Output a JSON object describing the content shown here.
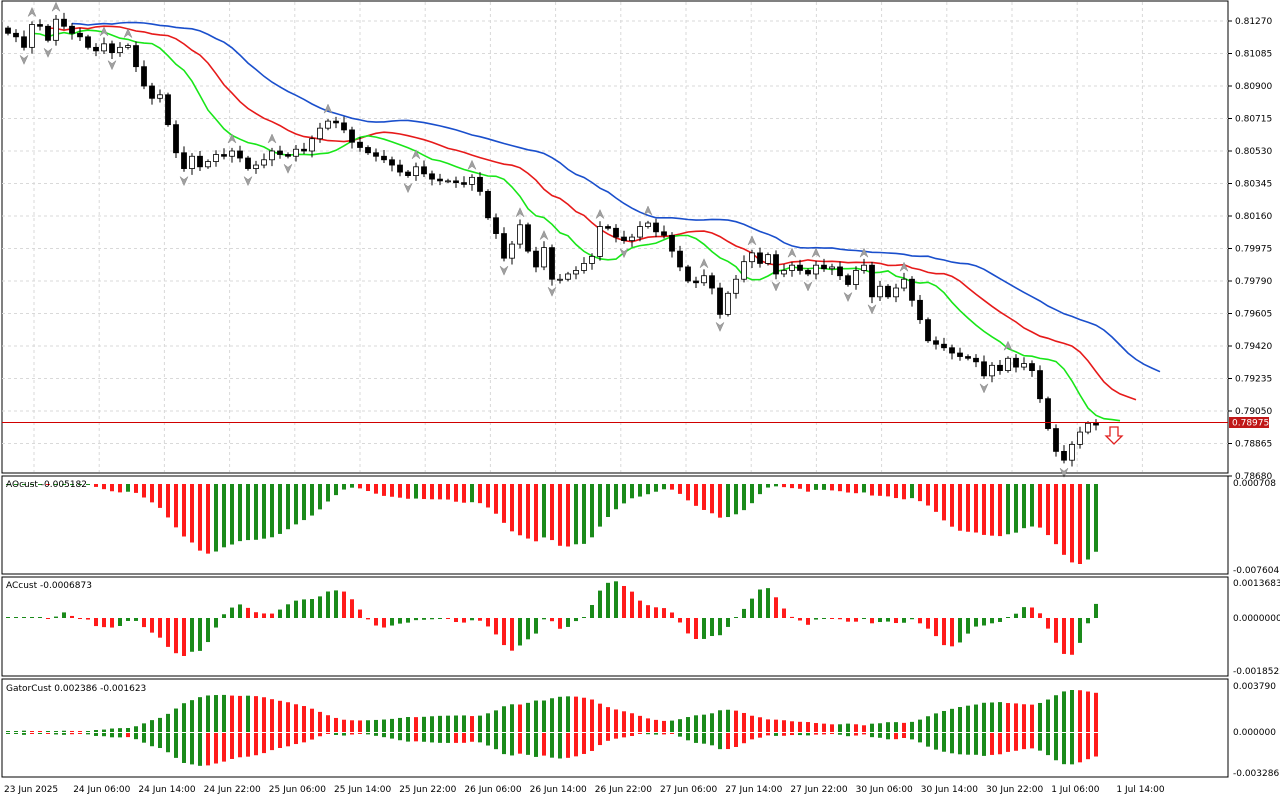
{
  "colors": {
    "bull_bar": "#1a8a1a",
    "bear_bar": "#ff1a1a",
    "alligator_jaw": "#1a4fcc",
    "alligator_teeth": "#e61a1a",
    "alligator_lips": "#19e619",
    "price_line": "#d00000",
    "price_label_bg": "#c01818",
    "fractal": "#a0a0a0",
    "candle_bear": "#000000",
    "candle_bull": "#ffffff"
  },
  "price_label": "0.78975",
  "signal_arrow": "down-arrow-icon",
  "main_pane": {
    "y_ticks": [
      "0.81270",
      "0.81085",
      "0.80900",
      "0.80715",
      "0.80530",
      "0.80345",
      "0.80160",
      "0.79975",
      "0.79790",
      "0.79605",
      "0.79420",
      "0.79235",
      "0.79050",
      "0.78865",
      "0.78680"
    ]
  },
  "ao_pane": {
    "title": "AOcust -0.005182",
    "y_ticks": [
      "0.000708",
      "-0.007604"
    ]
  },
  "ac_pane": {
    "title": "ACcust -0.0006873",
    "y_ticks": [
      "0.0013683",
      "0.0000000",
      "-0.0018522"
    ]
  },
  "gator_pane": {
    "title": "GatorCust 0.002386 -0.001623",
    "y_ticks": [
      "0.003790",
      "0.000000",
      "-0.003286"
    ]
  },
  "x_ticks": [
    "23 Jun 2025",
    "24 Jun 06:00",
    "24 Jun 14:00",
    "24 Jun 22:00",
    "25 Jun 06:00",
    "25 Jun 14:00",
    "25 Jun 22:00",
    "26 Jun 06:00",
    "26 Jun 14:00",
    "26 Jun 22:00",
    "27 Jun 06:00",
    "27 Jun 14:00",
    "27 Jun 22:00",
    "30 Jun 06:00",
    "30 Jun 14:00",
    "30 Jun 22:00",
    "1 Jul 06:00",
    "1 Jul 14:00"
  ],
  "chart_data": {
    "type": "candlestick",
    "n_bars": 137,
    "last_price": 0.78975,
    "closes": [
      0.812,
      0.8118,
      0.8112,
      0.8125,
      0.8124,
      0.8116,
      0.8128,
      0.8124,
      0.812,
      0.8118,
      0.8112,
      0.811,
      0.8114,
      0.8109,
      0.8112,
      0.8113,
      0.8101,
      0.809,
      0.8083,
      0.8085,
      0.8068,
      0.8052,
      0.8043,
      0.805,
      0.8044,
      0.8047,
      0.8051,
      0.805,
      0.8053,
      0.8049,
      0.8043,
      0.8045,
      0.8048,
      0.8053,
      0.8051,
      0.805,
      0.8054,
      0.8053,
      0.806,
      0.8066,
      0.807,
      0.8069,
      0.8065,
      0.8058,
      0.8055,
      0.8052,
      0.805,
      0.8048,
      0.8045,
      0.8041,
      0.8039,
      0.8044,
      0.804,
      0.8037,
      0.8036,
      0.8036,
      0.8035,
      0.8034,
      0.8038,
      0.803,
      0.8015,
      0.8006,
      0.7992,
      0.8,
      0.8011,
      0.7996,
      0.7987,
      0.7998,
      0.798,
      0.798,
      0.7983,
      0.7985,
      0.7989,
      0.7993,
      0.801,
      0.8009,
      0.8004,
      0.8002,
      0.8004,
      0.801,
      0.8012,
      0.8007,
      0.8005,
      0.7996,
      0.7987,
      0.7979,
      0.7978,
      0.7982,
      0.7975,
      0.796,
      0.7972,
      0.798,
      0.799,
      0.7995,
      0.7989,
      0.7994,
      0.7983,
      0.7985,
      0.7988,
      0.7985,
      0.7983,
      0.7988,
      0.7986,
      0.7987,
      0.7982,
      0.7977,
      0.7985,
      0.7988,
      0.797,
      0.7976,
      0.797,
      0.7975,
      0.798,
      0.7968,
      0.7957,
      0.7945,
      0.7943,
      0.7941,
      0.7938,
      0.7936,
      0.7935,
      0.7933,
      0.7925,
      0.7931,
      0.7928,
      0.7935,
      0.793,
      0.7932,
      0.7928,
      0.7912,
      0.7895,
      0.7882,
      0.7877,
      0.7886,
      0.7893,
      0.7898,
      0.7897
    ]
  }
}
